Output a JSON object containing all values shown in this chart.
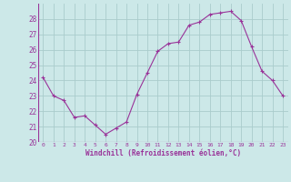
{
  "x": [
    0,
    1,
    2,
    3,
    4,
    5,
    6,
    7,
    8,
    9,
    10,
    11,
    12,
    13,
    14,
    15,
    16,
    17,
    18,
    19,
    20,
    21,
    22,
    23
  ],
  "y": [
    24.2,
    23.0,
    22.7,
    21.6,
    21.7,
    21.1,
    20.5,
    20.9,
    21.3,
    23.1,
    24.5,
    25.9,
    26.4,
    26.5,
    27.6,
    27.8,
    28.3,
    28.4,
    28.5,
    27.9,
    26.2,
    24.6,
    24.0,
    23.0
  ],
  "line_color": "#993399",
  "marker": "+",
  "bg_color": "#cce8e8",
  "grid_color": "#aacccc",
  "xlabel": "Windchill (Refroidissement éolien,°C)",
  "xlabel_color": "#993399",
  "tick_color": "#993399",
  "ylim": [
    20,
    29
  ],
  "yticks": [
    20,
    21,
    22,
    23,
    24,
    25,
    26,
    27,
    28
  ],
  "xticks": [
    0,
    1,
    2,
    3,
    4,
    5,
    6,
    7,
    8,
    9,
    10,
    11,
    12,
    13,
    14,
    15,
    16,
    17,
    18,
    19,
    20,
    21,
    22,
    23
  ]
}
